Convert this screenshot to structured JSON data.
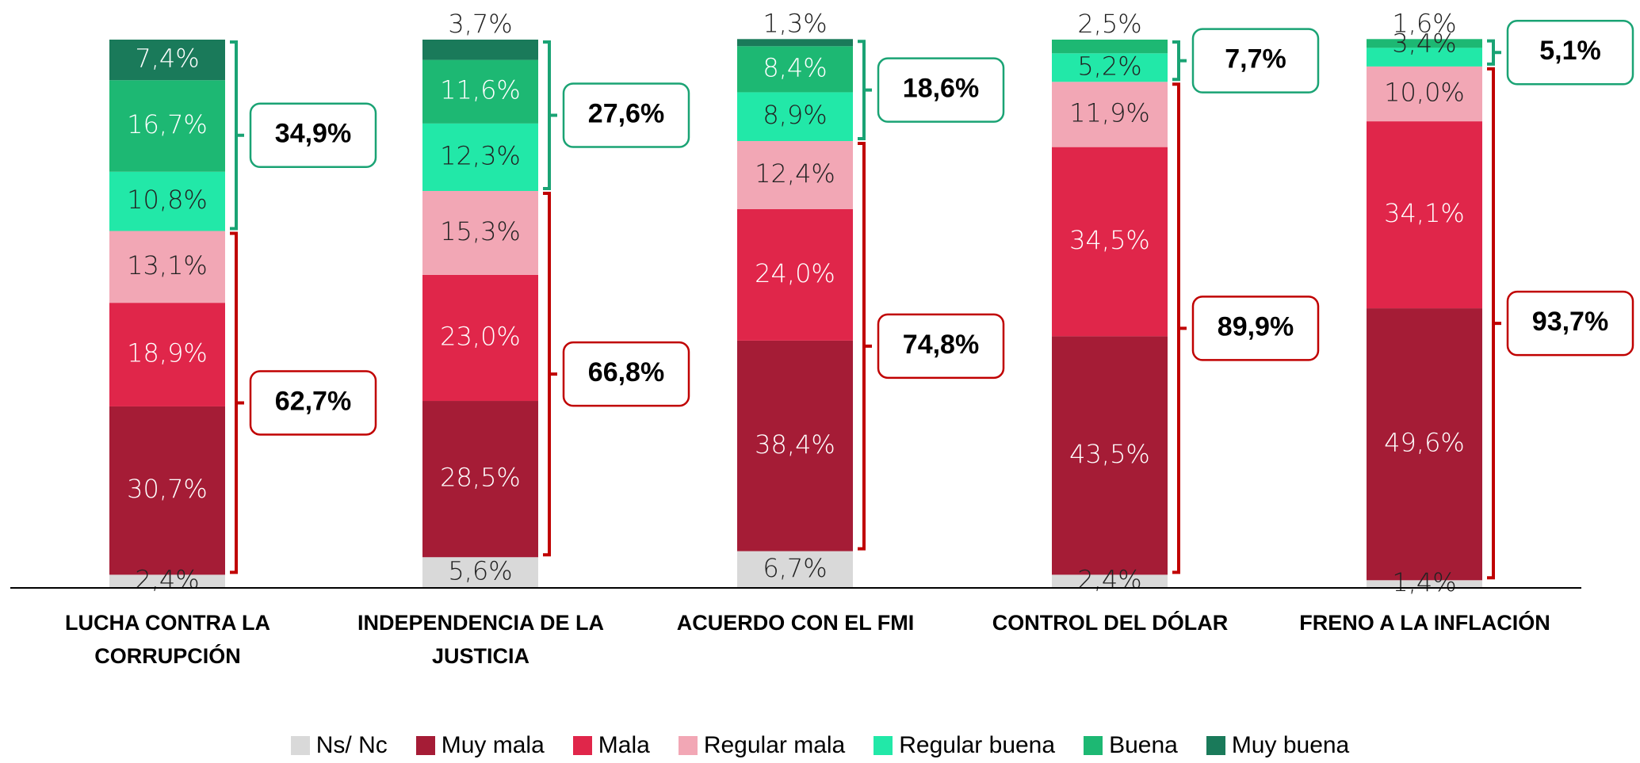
{
  "chart_data": {
    "type": "stacked_bar",
    "categories": [
      "LUCHA CONTRA LA CORRUPCIÓN",
      "INDEPENDENCIA DE LA JUSTICIA",
      "ACUERDO CON EL FMI",
      "CONTROL DEL DÓLAR",
      "FRENO A LA INFLACIÓN"
    ],
    "ylim": [
      0,
      100
    ],
    "series": [
      {
        "name": "Ns/ Nc",
        "color": "#d9d9d9",
        "values": [
          2.4,
          5.6,
          6.7,
          2.4,
          1.4
        ],
        "value_labels": [
          "2,4%",
          "5,6%",
          "6,7%",
          "2,4%",
          "1,4%"
        ]
      },
      {
        "name": "Muy mala",
        "color": "#a51c36",
        "values": [
          30.7,
          28.5,
          38.4,
          43.5,
          49.6
        ],
        "value_labels": [
          "30,7%",
          "28,5%",
          "38,4%",
          "43,5%",
          "49,6%"
        ]
      },
      {
        "name": "Mala",
        "color": "#e0264a",
        "values": [
          18.9,
          23.0,
          24.0,
          34.5,
          34.1
        ],
        "value_labels": [
          "18,9%",
          "23,0%",
          "24,0%",
          "34,5%",
          "34,1%"
        ]
      },
      {
        "name": "Regular mala",
        "color": "#f2a7b5",
        "values": [
          13.1,
          15.3,
          12.4,
          11.9,
          10.0
        ],
        "value_labels": [
          "13,1%",
          "15,3%",
          "12,4%",
          "11,9%",
          "10,0%"
        ]
      },
      {
        "name": "Regular buena",
        "color": "#22e8a8",
        "values": [
          10.8,
          12.3,
          8.9,
          5.2,
          3.4
        ],
        "value_labels": [
          "10,8%",
          "12,3%",
          "8,9%",
          "5,2%",
          "3,4%"
        ]
      },
      {
        "name": "Buena",
        "color": "#1db873",
        "values": [
          16.7,
          11.6,
          8.4,
          2.5,
          1.6
        ],
        "value_labels": [
          "16,7%",
          "11,6%",
          "8,4%",
          "2,5%",
          "1,6%"
        ]
      },
      {
        "name": "Muy buena",
        "color": "#1a7a5a",
        "values": [
          7.4,
          3.7,
          1.3,
          0,
          0
        ],
        "value_labels": [
          "7,4%",
          "3,7%",
          "1,3%",
          null,
          null
        ]
      }
    ],
    "brackets": [
      {
        "color": "#1aa374",
        "from_series": 4,
        "values": [
          34.9,
          27.6,
          18.6,
          7.7,
          5.1
        ],
        "value_labels": [
          "34,9%",
          "27,6%",
          "18,6%",
          "7,7%",
          "5,1%"
        ]
      },
      {
        "color": "#c00000",
        "from_series": 1,
        "values": [
          62.7,
          66.8,
          74.8,
          89.9,
          93.7
        ],
        "value_labels": [
          "62,7%",
          "66,8%",
          "74,8%",
          "89,9%",
          "93,7%"
        ]
      }
    ]
  }
}
